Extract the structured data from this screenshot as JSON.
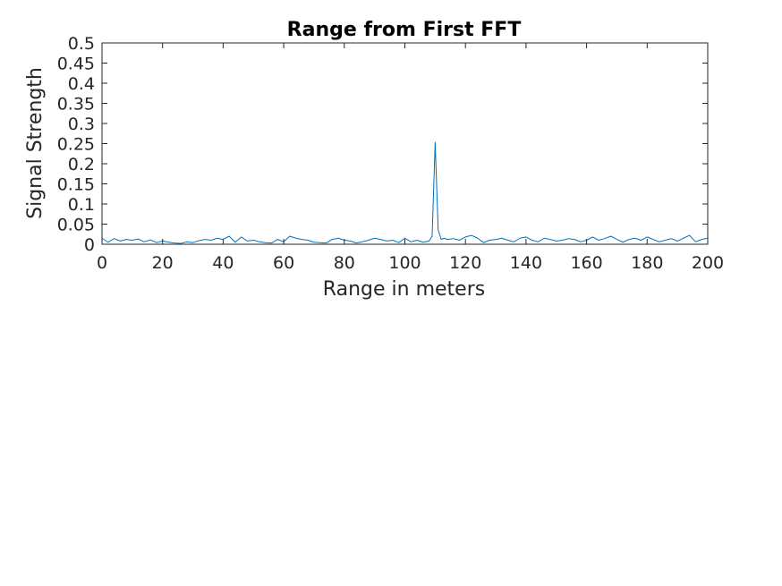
{
  "chart_data": {
    "type": "line",
    "title": "Range from First FFT",
    "xlabel": "Range in meters",
    "ylabel": "Signal Strength",
    "xlim": [
      0,
      200
    ],
    "ylim": [
      0,
      0.5
    ],
    "xticks": [
      0,
      20,
      40,
      60,
      80,
      100,
      120,
      140,
      160,
      180,
      200
    ],
    "yticks": [
      0,
      0.05,
      0.1,
      0.15,
      0.2,
      0.25,
      0.3,
      0.35,
      0.4,
      0.45,
      0.5
    ],
    "grid": false,
    "series": [
      {
        "color": "#0072BD",
        "x": [
          0,
          2,
          4,
          6,
          8,
          10,
          12,
          14,
          16,
          18,
          20,
          22,
          24,
          26,
          28,
          30,
          32,
          34,
          36,
          38,
          40,
          42,
          44,
          46,
          48,
          50,
          52,
          54,
          56,
          58,
          60,
          62,
          64,
          66,
          68,
          70,
          72,
          74,
          76,
          78,
          80,
          82,
          84,
          86,
          88,
          90,
          92,
          94,
          96,
          98,
          100,
          102,
          104,
          106,
          108,
          109,
          110,
          111,
          112,
          113,
          114,
          116,
          118,
          120,
          122,
          124,
          126,
          128,
          130,
          132,
          134,
          136,
          138,
          140,
          142,
          144,
          146,
          148,
          150,
          152,
          154,
          156,
          158,
          160,
          162,
          164,
          166,
          168,
          170,
          172,
          174,
          176,
          178,
          180,
          182,
          184,
          186,
          188,
          190,
          192,
          194,
          196,
          198,
          200
        ],
        "y": [
          0.015,
          0.005,
          0.014,
          0.008,
          0.012,
          0.01,
          0.013,
          0.006,
          0.011,
          0.004,
          0.008,
          0.005,
          0.003,
          0.002,
          0.006,
          0.004,
          0.009,
          0.012,
          0.01,
          0.015,
          0.012,
          0.02,
          0.005,
          0.018,
          0.008,
          0.01,
          0.006,
          0.004,
          0.003,
          0.012,
          0.006,
          0.02,
          0.015,
          0.012,
          0.01,
          0.005,
          0.004,
          0.003,
          0.012,
          0.015,
          0.01,
          0.008,
          0.003,
          0.006,
          0.01,
          0.015,
          0.012,
          0.008,
          0.01,
          0.004,
          0.015,
          0.006,
          0.01,
          0.005,
          0.008,
          0.02,
          0.253,
          0.035,
          0.012,
          0.015,
          0.012,
          0.014,
          0.01,
          0.018,
          0.022,
          0.015,
          0.004,
          0.01,
          0.012,
          0.015,
          0.01,
          0.006,
          0.015,
          0.018,
          0.01,
          0.006,
          0.015,
          0.012,
          0.008,
          0.01,
          0.014,
          0.012,
          0.006,
          0.01,
          0.018,
          0.01,
          0.014,
          0.02,
          0.012,
          0.005,
          0.012,
          0.015,
          0.01,
          0.018,
          0.012,
          0.006,
          0.01,
          0.014,
          0.008,
          0.015,
          0.022,
          0.006,
          0.012,
          0.015
        ]
      }
    ]
  }
}
